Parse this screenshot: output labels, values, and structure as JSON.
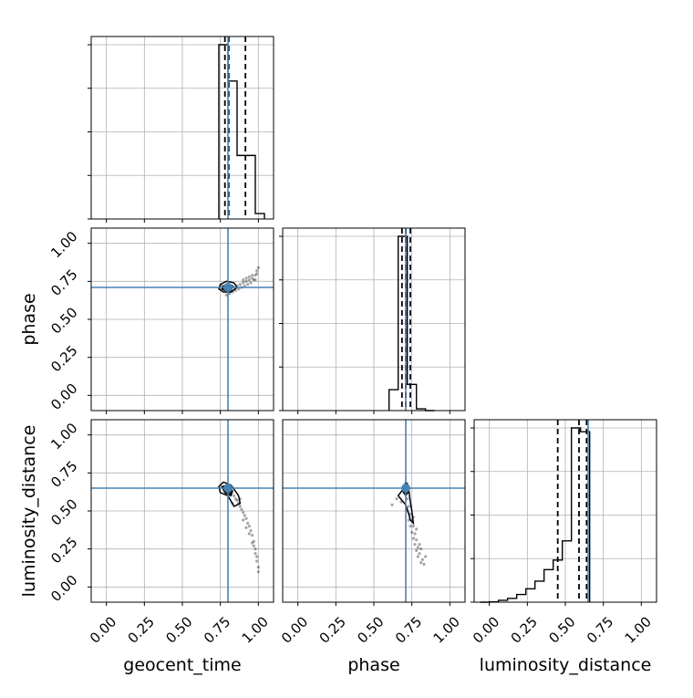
{
  "chart_data": {
    "type": "corner",
    "parameters": [
      "geocent_time",
      "phase",
      "luminosity_distance"
    ],
    "axis_range": [
      -0.1,
      1.1
    ],
    "ticks": [
      0.0,
      0.25,
      0.5,
      0.75,
      1.0
    ],
    "tick_labels": [
      "0.00",
      "0.25",
      "0.50",
      "0.75",
      "1.00"
    ],
    "grid": true,
    "truths": [
      0.8,
      0.71,
      0.65
    ],
    "truth_color": "#4682b4",
    "hist_color": "#000000",
    "histograms": [
      {
        "parameter": "geocent_time",
        "bin_edges": [
          0.74,
          0.8,
          0.86,
          0.92,
          0.98,
          1.04
        ],
        "counts": [
          0.96,
          0.76,
          0.35,
          0.35,
          0.03
        ],
        "quantiles": [
          0.78,
          0.805,
          0.915
        ]
      },
      {
        "parameter": "phase",
        "bin_edges": [
          0.6,
          0.66,
          0.72,
          0.78,
          0.84,
          0.9
        ],
        "counts": [
          0.12,
          1.0,
          0.15,
          0.01,
          0.0
        ],
        "quantiles": [
          0.685,
          0.71,
          0.74
        ]
      },
      {
        "parameter": "luminosity_distance",
        "bin_edges": [
          -0.06,
          0.0,
          0.06,
          0.12,
          0.18,
          0.24,
          0.3,
          0.36,
          0.42,
          0.48,
          0.54,
          0.6,
          0.66
        ],
        "counts": [
          0.0,
          0.002,
          0.01,
          0.02,
          0.04,
          0.07,
          0.11,
          0.17,
          0.22,
          0.32,
          0.91,
          0.89
        ],
        "quantiles": [
          0.45,
          0.59,
          0.64
        ]
      }
    ],
    "scatter_panels": [
      {
        "x": "geocent_time",
        "y": "phase",
        "points": [
          [
            0.76,
            0.72
          ],
          [
            0.78,
            0.7
          ],
          [
            0.8,
            0.71
          ],
          [
            0.82,
            0.7
          ],
          [
            0.84,
            0.71
          ],
          [
            0.86,
            0.72
          ],
          [
            0.88,
            0.73
          ],
          [
            0.9,
            0.74
          ],
          [
            0.92,
            0.75
          ],
          [
            0.94,
            0.76
          ],
          [
            0.96,
            0.77
          ],
          [
            0.98,
            0.79
          ],
          [
            0.99,
            0.82
          ],
          [
            1.0,
            0.84
          ],
          [
            0.93,
            0.73
          ],
          [
            0.95,
            0.74
          ],
          [
            0.97,
            0.76
          ],
          [
            0.89,
            0.71
          ],
          [
            0.85,
            0.69
          ],
          [
            0.83,
            0.68
          ],
          [
            0.81,
            0.67
          ],
          [
            0.79,
            0.66
          ],
          [
            0.87,
            0.7
          ],
          [
            0.91,
            0.72
          ],
          [
            0.98,
            0.76
          ],
          [
            0.96,
            0.79
          ],
          [
            0.94,
            0.78
          ],
          [
            0.92,
            0.77
          ],
          [
            0.9,
            0.76
          ],
          [
            0.99,
            0.8
          ]
        ],
        "contours": [
          [
            [
              0.75,
              0.73
            ],
            [
              0.79,
              0.75
            ],
            [
              0.84,
              0.74
            ],
            [
              0.86,
              0.71
            ],
            [
              0.82,
              0.68
            ],
            [
              0.77,
              0.68
            ],
            [
              0.74,
              0.7
            ],
            [
              0.75,
              0.73
            ]
          ],
          [
            [
              0.77,
              0.72
            ],
            [
              0.8,
              0.73
            ],
            [
              0.83,
              0.72
            ],
            [
              0.82,
              0.69
            ],
            [
              0.78,
              0.69
            ],
            [
              0.76,
              0.7
            ],
            [
              0.77,
              0.72
            ]
          ]
        ]
      },
      {
        "x": "geocent_time",
        "y": "luminosity_distance",
        "points": [
          [
            0.78,
            0.66
          ],
          [
            0.8,
            0.64
          ],
          [
            0.82,
            0.62
          ],
          [
            0.84,
            0.6
          ],
          [
            0.86,
            0.57
          ],
          [
            0.88,
            0.53
          ],
          [
            0.9,
            0.49
          ],
          [
            0.92,
            0.45
          ],
          [
            0.94,
            0.4
          ],
          [
            0.96,
            0.34
          ],
          [
            0.97,
            0.3
          ],
          [
            0.98,
            0.25
          ],
          [
            0.99,
            0.2
          ],
          [
            1.0,
            0.13
          ],
          [
            0.87,
            0.55
          ],
          [
            0.89,
            0.51
          ],
          [
            0.91,
            0.47
          ],
          [
            0.93,
            0.42
          ],
          [
            0.95,
            0.37
          ],
          [
            0.97,
            0.27
          ],
          [
            0.98,
            0.22
          ],
          [
            0.99,
            0.17
          ],
          [
            0.85,
            0.58
          ],
          [
            0.83,
            0.55
          ],
          [
            0.88,
            0.58
          ],
          [
            0.96,
            0.29
          ],
          [
            0.94,
            0.35
          ],
          [
            0.92,
            0.39
          ],
          [
            0.9,
            0.44
          ],
          [
            1.0,
            0.1
          ]
        ],
        "contours": [
          [
            [
              0.74,
              0.66
            ],
            [
              0.77,
              0.69
            ],
            [
              0.82,
              0.67
            ],
            [
              0.87,
              0.6
            ],
            [
              0.88,
              0.55
            ],
            [
              0.84,
              0.53
            ],
            [
              0.8,
              0.6
            ],
            [
              0.75,
              0.62
            ],
            [
              0.74,
              0.66
            ]
          ],
          [
            [
              0.76,
              0.66
            ],
            [
              0.8,
              0.67
            ],
            [
              0.83,
              0.63
            ],
            [
              0.82,
              0.6
            ],
            [
              0.78,
              0.62
            ],
            [
              0.76,
              0.66
            ]
          ]
        ]
      },
      {
        "x": "phase",
        "y": "luminosity_distance",
        "points": [
          [
            0.7,
            0.66
          ],
          [
            0.71,
            0.62
          ],
          [
            0.72,
            0.58
          ],
          [
            0.73,
            0.53
          ],
          [
            0.74,
            0.48
          ],
          [
            0.75,
            0.44
          ],
          [
            0.76,
            0.4
          ],
          [
            0.77,
            0.35
          ],
          [
            0.78,
            0.31
          ],
          [
            0.79,
            0.26
          ],
          [
            0.8,
            0.22
          ],
          [
            0.82,
            0.18
          ],
          [
            0.83,
            0.15
          ],
          [
            0.74,
            0.4
          ],
          [
            0.75,
            0.36
          ],
          [
            0.76,
            0.32
          ],
          [
            0.77,
            0.28
          ],
          [
            0.78,
            0.24
          ],
          [
            0.79,
            0.2
          ],
          [
            0.81,
            0.25
          ],
          [
            0.76,
            0.46
          ],
          [
            0.73,
            0.44
          ],
          [
            0.72,
            0.5
          ],
          [
            0.68,
            0.56
          ],
          [
            0.65,
            0.58
          ],
          [
            0.62,
            0.54
          ],
          [
            0.8,
            0.28
          ],
          [
            0.84,
            0.2
          ],
          [
            0.78,
            0.38
          ],
          [
            0.81,
            0.16
          ]
        ],
        "contours": [
          [
            [
              0.69,
              0.64
            ],
            [
              0.66,
              0.6
            ],
            [
              0.71,
              0.54
            ],
            [
              0.73,
              0.48
            ],
            [
              0.74,
              0.44
            ],
            [
              0.76,
              0.42
            ],
            [
              0.75,
              0.5
            ],
            [
              0.74,
              0.56
            ],
            [
              0.73,
              0.64
            ],
            [
              0.71,
              0.69
            ],
            [
              0.69,
              0.64
            ]
          ],
          [
            [
              0.7,
              0.66
            ],
            [
              0.69,
              0.63
            ],
            [
              0.71,
              0.6
            ],
            [
              0.73,
              0.63
            ],
            [
              0.72,
              0.68
            ],
            [
              0.7,
              0.66
            ]
          ]
        ]
      }
    ]
  }
}
